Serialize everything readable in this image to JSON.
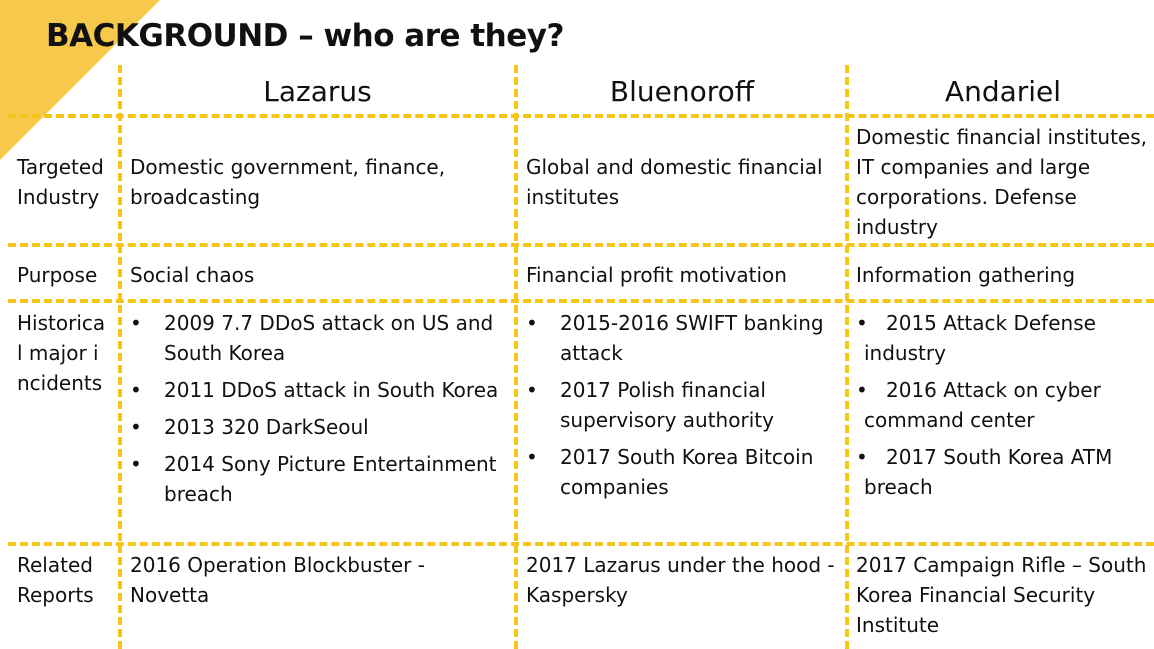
{
  "title": "BACKGROUND – who are they?",
  "columns": [
    "Lazarus",
    "Bluenoroff",
    "Andariel"
  ],
  "rows": {
    "industry": {
      "label": "Targeted Industry",
      "values": [
        "Domestic government, finance, broadcasting",
        "Global and domestic financial institutes",
        "Domestic financial institutes, IT companies and large corporations. Defense industry"
      ]
    },
    "purpose": {
      "label": "Purpose",
      "values": [
        "Social chaos",
        "Financial profit motivation",
        "Information gathering"
      ]
    },
    "incidents": {
      "label": "Historical major incidents",
      "lazarus": [
        "2009 7.7 DDoS attack on US and South Korea",
        "2011 DDoS attack in South Korea",
        "2013 320 DarkSeoul",
        "2014 Sony Picture Entertainment breach"
      ],
      "bluenoroff": [
        "2015-2016 SWIFT banking attack",
        "2017 Polish financial supervisory authority",
        "2017 South Korea Bitcoin companies"
      ],
      "andariel": [
        "2015 Attack Defense industry",
        "2016 Attack on cyber command center",
        "2017 South Korea ATM breach"
      ]
    },
    "reports": {
      "label": "Related Reports",
      "values": [
        "2016 Operation Blockbuster - Novetta",
        "2017 Lazarus under the hood - Kaspersky",
        "2017 Campaign Rifle – South Korea Financial Security Institute"
      ]
    }
  },
  "bullet": "•",
  "colors": {
    "accent": "#f5c518",
    "corner": "#f7c94b"
  }
}
